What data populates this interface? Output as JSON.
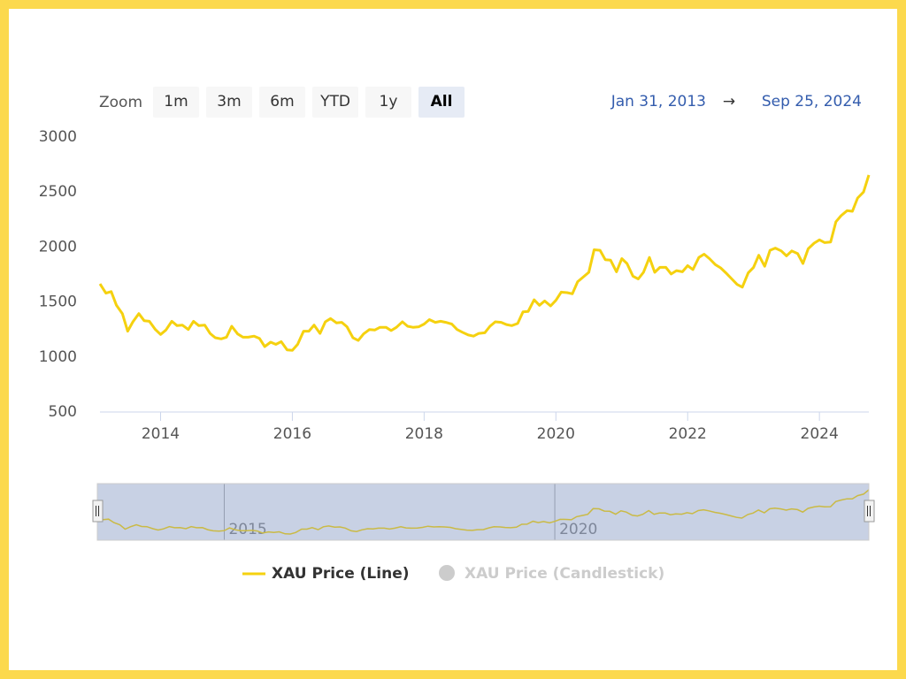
{
  "chart_data": {
    "type": "line",
    "range_selector": {
      "label": "Zoom",
      "buttons": [
        "1m",
        "3m",
        "6m",
        "YTD",
        "1y",
        "All"
      ],
      "selected": 5,
      "from": "Jan 31, 2013",
      "arrow": "→",
      "to": "Sep 25, 2024"
    },
    "x": [
      2013.08,
      2013.17,
      2013.25,
      2013.33,
      2013.42,
      2013.5,
      2013.58,
      2013.67,
      2013.75,
      2013.83,
      2013.92,
      2014.0,
      2014.08,
      2014.17,
      2014.25,
      2014.33,
      2014.42,
      2014.5,
      2014.58,
      2014.67,
      2014.75,
      2014.83,
      2014.92,
      2015.0,
      2015.08,
      2015.17,
      2015.25,
      2015.33,
      2015.42,
      2015.5,
      2015.58,
      2015.67,
      2015.75,
      2015.83,
      2015.92,
      2016.0,
      2016.08,
      2016.17,
      2016.25,
      2016.33,
      2016.42,
      2016.5,
      2016.58,
      2016.67,
      2016.75,
      2016.83,
      2016.92,
      2017.0,
      2017.08,
      2017.17,
      2017.25,
      2017.33,
      2017.42,
      2017.5,
      2017.58,
      2017.67,
      2017.75,
      2017.83,
      2017.92,
      2018.0,
      2018.08,
      2018.17,
      2018.25,
      2018.33,
      2018.42,
      2018.5,
      2018.58,
      2018.67,
      2018.75,
      2018.83,
      2018.92,
      2019.0,
      2019.08,
      2019.17,
      2019.25,
      2019.33,
      2019.42,
      2019.5,
      2019.58,
      2019.67,
      2019.75,
      2019.83,
      2019.92,
      2020.0,
      2020.08,
      2020.17,
      2020.25,
      2020.33,
      2020.42,
      2020.5,
      2020.58,
      2020.67,
      2020.75,
      2020.83,
      2020.92,
      2021.0,
      2021.08,
      2021.17,
      2021.25,
      2021.33,
      2021.42,
      2021.5,
      2021.58,
      2021.67,
      2021.75,
      2021.83,
      2021.92,
      2022.0,
      2022.08,
      2022.17,
      2022.25,
      2022.33,
      2022.42,
      2022.5,
      2022.58,
      2022.67,
      2022.75,
      2022.83,
      2022.92,
      2023.0,
      2023.08,
      2023.17,
      2023.25,
      2023.33,
      2023.42,
      2023.5,
      2023.58,
      2023.67,
      2023.75,
      2023.83,
      2023.92,
      2024.0,
      2024.08,
      2024.17,
      2024.25,
      2024.33,
      2024.42,
      2024.5,
      2024.58,
      2024.67,
      2024.75
    ],
    "series": [
      {
        "name": "XAU Price (Line)",
        "color": "#f5d10f",
        "values": [
          1665,
          1580,
          1595,
          1470,
          1395,
          1235,
          1320,
          1395,
          1330,
          1325,
          1250,
          1205,
          1245,
          1325,
          1285,
          1290,
          1250,
          1325,
          1285,
          1290,
          1215,
          1175,
          1165,
          1180,
          1280,
          1210,
          1180,
          1180,
          1190,
          1170,
          1095,
          1135,
          1115,
          1140,
          1065,
          1060,
          1115,
          1235,
          1235,
          1290,
          1215,
          1320,
          1350,
          1310,
          1315,
          1275,
          1175,
          1150,
          1210,
          1250,
          1245,
          1270,
          1270,
          1240,
          1270,
          1320,
          1280,
          1270,
          1275,
          1300,
          1340,
          1315,
          1325,
          1315,
          1300,
          1250,
          1225,
          1200,
          1190,
          1215,
          1220,
          1280,
          1320,
          1315,
          1295,
          1285,
          1305,
          1410,
          1415,
          1520,
          1470,
          1510,
          1465,
          1515,
          1590,
          1585,
          1575,
          1685,
          1730,
          1770,
          1975,
          1970,
          1885,
          1880,
          1775,
          1895,
          1850,
          1735,
          1710,
          1770,
          1905,
          1770,
          1815,
          1815,
          1755,
          1785,
          1775,
          1830,
          1795,
          1905,
          1935,
          1895,
          1840,
          1810,
          1765,
          1710,
          1660,
          1635,
          1765,
          1815,
          1925,
          1825,
          1970,
          1990,
          1965,
          1920,
          1965,
          1940,
          1850,
          1985,
          2035,
          2065,
          2040,
          2045,
          2230,
          2285,
          2330,
          2325,
          2445,
          2500,
          2655
        ]
      }
    ],
    "hidden_series": [
      {
        "name": "XAU Price (Candlestick)",
        "color": "#cccccc"
      }
    ],
    "xlim": [
      2013.08,
      2024.75
    ],
    "xticks": [
      2014,
      2016,
      2018,
      2020,
      2022,
      2024
    ],
    "ylim": [
      500,
      3000
    ],
    "yticks": [
      500,
      1000,
      1500,
      2000,
      2500,
      3000
    ],
    "grid": false,
    "navigator": {
      "xticks": [
        2015,
        2020
      ]
    }
  }
}
